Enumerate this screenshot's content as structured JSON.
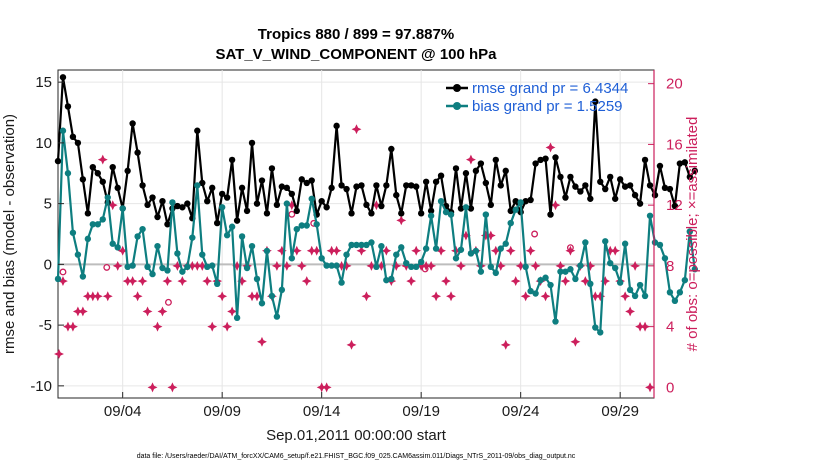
{
  "chart_data": {
    "type": "line",
    "title_line1": "Tropics 880 / 899 = 97.887%",
    "title_line2": "SAT_V_WIND_COMPONENT @ 100 hPa",
    "xlabel": "Sep.01,2011 00:00:00 start",
    "ylabel_left": "rmse and bias (model - observation)",
    "ylabel_right": "# of obs: o=possible; ×=assimilated",
    "footnote": "data file: /Users/raeder/DAI/ATM_forcXX/CAM6_setup/f.e21.FHIST_BGC.f09_025.CAM6assim.011/Diags_NTrS_2011-09/obs_diag_output.nc",
    "x_range": [
      0.75,
      30.7
    ],
    "ylim_left": [
      -11,
      16
    ],
    "ylim_right": [
      -0.7,
      20.9
    ],
    "x_ticks": [
      {
        "x": 4,
        "label": "09/04"
      },
      {
        "x": 9,
        "label": "09/09"
      },
      {
        "x": 14,
        "label": "09/14"
      },
      {
        "x": 19,
        "label": "09/19"
      },
      {
        "x": 24,
        "label": "09/24"
      },
      {
        "x": 29,
        "label": "09/29"
      }
    ],
    "y_ticks_left": [
      {
        "v": -10,
        "label": "-10"
      },
      {
        "v": -5,
        "label": "-5"
      },
      {
        "v": 0,
        "label": "0"
      },
      {
        "v": 5,
        "label": "5"
      },
      {
        "v": 10,
        "label": "10"
      },
      {
        "v": 15,
        "label": "15"
      }
    ],
    "y_ticks_right": [
      {
        "v": 0,
        "label": "0"
      },
      {
        "v": 4,
        "label": "4"
      },
      {
        "v": 8,
        "label": "8"
      },
      {
        "v": 12,
        "label": "12"
      },
      {
        "v": 16,
        "label": "16"
      },
      {
        "v": 20,
        "label": "20"
      }
    ],
    "grid": true,
    "legend_position": "top-right",
    "series": [
      {
        "name": "rmse grand pr = 6.4344",
        "color": "#000000",
        "x_start": 0.75,
        "x_step": 0.25,
        "values": [
          8.5,
          15.4,
          13,
          10.5,
          10,
          7,
          4.2,
          8,
          7.5,
          6.8,
          5.1,
          8,
          6.3,
          4.6,
          7.7,
          11.6,
          9.2,
          6.5,
          4.9,
          5.5,
          3.9,
          5.2,
          3.3,
          4.6,
          4.8,
          4.7,
          5,
          3.8,
          11,
          6.7,
          5.2,
          6.3,
          3.4,
          5.8,
          5.5,
          8.6,
          3.6,
          6.3,
          4.4,
          10,
          5,
          6.9,
          4.2,
          7.9,
          4.9,
          6.4,
          6.3,
          5.8,
          4.4,
          7,
          6.7,
          6.9,
          4.1,
          5.2,
          4.7,
          6.3,
          11.4,
          6.5,
          6.2,
          4.2,
          6.4,
          6.5,
          4.9,
          4.2,
          6.5,
          4.8,
          6.5,
          9.5,
          5.7,
          4.2,
          6.5,
          6.5,
          6.4,
          4.2,
          6.8,
          4.4,
          6.8,
          7.3,
          4.8,
          4.3,
          7.9,
          4.6,
          7.5,
          4.6,
          7.7,
          8.3,
          6.7,
          4.9,
          8.6,
          6.5,
          7.7,
          4.4,
          5.2,
          4.3,
          5.2,
          5.3,
          8.3,
          8.6,
          8.7,
          4.1,
          8.8,
          7.2,
          5.5,
          7.2,
          6.4,
          6,
          6.5,
          5.4,
          13.4,
          6.8,
          6.2,
          7.2,
          5.4,
          7,
          6.4,
          6.5,
          5.7,
          5,
          8.6,
          6.5,
          5.7,
          8.1,
          6.3,
          6.2,
          4.8,
          8.3,
          8.4,
          7.2,
          7.7
        ]
      },
      {
        "name": "bias grand pr = 1.5259",
        "color": "#0e7e80",
        "x_start": 0.75,
        "x_step": 0.25,
        "values": [
          -1.2,
          11,
          7.5,
          2.6,
          0.8,
          -1,
          2.1,
          3.3,
          3.3,
          3.7,
          5.5,
          1.7,
          1.4,
          4.6,
          -0.2,
          -0.1,
          2.3,
          2.9,
          -0.2,
          -0.8,
          1.5,
          -0.3,
          -0.5,
          5.1,
          0.9,
          -0.6,
          -0.2,
          2.2,
          6.5,
          0.8,
          -0.2,
          -0.1,
          -1.6,
          4.7,
          2.4,
          3.1,
          -4.4,
          2.3,
          -0.3,
          1.5,
          -1.2,
          -3.2,
          1.1,
          -2.6,
          -4.3,
          -2.1,
          5,
          0.5,
          2.9,
          3.2,
          3.2,
          5.4,
          3.3,
          0.5,
          -0.1,
          -0.1,
          -0.1,
          -1.5,
          0.8,
          1.6,
          1.6,
          1.6,
          1.6,
          1.8,
          -0.2,
          1.5,
          -1.3,
          -1.2,
          0.8,
          1.4,
          0.1,
          -0.2,
          -0.2,
          0.2,
          1.3,
          4,
          1.3,
          5.2,
          4.3,
          4.1,
          0.5,
          1.2,
          4.7,
          0.9,
          1.1,
          -0.6,
          4.1,
          -0.2,
          -0.7,
          1.3,
          1.7,
          3.4,
          4.5,
          5.1,
          -0.2,
          -2.2,
          -2.4,
          -1.3,
          -1.1,
          -1.7,
          -4.7,
          -0.6,
          -0.6,
          -0.4,
          -1.2,
          -0.1,
          1.8,
          -1.6,
          -5.2,
          -5.6,
          1.9,
          0.1,
          -0.3,
          -1.5,
          1.7,
          -2.1,
          -2.6,
          -1.7,
          -2.6,
          4,
          1.8,
          1.6,
          0.5,
          -2.3,
          -3,
          -2.3,
          -1.3,
          2.7,
          -0.4
        ]
      },
      {
        "name": "# obs possible",
        "color": "#cc1f5c",
        "points": [
          [
            1.0,
            7.6
          ],
          [
            3.2,
            7.9
          ],
          [
            6.3,
            5.6
          ],
          [
            12.5,
            11.4
          ],
          [
            13.6,
            10.8
          ],
          [
            19.2,
            7.8
          ],
          [
            24.7,
            10.1
          ],
          [
            26.5,
            9.2
          ]
        ]
      },
      {
        "name": "# obs assimilated",
        "color": "#cc1f5c",
        "points": [
          [
            0.8,
            2.2
          ],
          [
            1,
            7
          ],
          [
            1.25,
            4
          ],
          [
            1.5,
            4
          ],
          [
            1.75,
            5
          ],
          [
            2,
            5
          ],
          [
            2.25,
            6
          ],
          [
            2.5,
            6
          ],
          [
            2.75,
            6
          ],
          [
            3,
            15
          ],
          [
            3.25,
            6
          ],
          [
            3.5,
            12
          ],
          [
            3.75,
            8
          ],
          [
            4,
            9
          ],
          [
            4.25,
            7
          ],
          [
            4.5,
            7
          ],
          [
            4.75,
            6
          ],
          [
            5,
            7
          ],
          [
            5.25,
            5
          ],
          [
            5.5,
            0
          ],
          [
            5.75,
            4
          ],
          [
            6,
            5
          ],
          [
            6.25,
            7
          ],
          [
            6.5,
            0
          ],
          [
            6.75,
            8
          ],
          [
            7,
            7
          ],
          [
            7.25,
            8
          ],
          [
            7.5,
            8
          ],
          [
            7.75,
            8
          ],
          [
            8,
            8
          ],
          [
            8.25,
            7
          ],
          [
            8.5,
            4
          ],
          [
            8.75,
            7
          ],
          [
            9,
            6
          ],
          [
            9.25,
            4
          ],
          [
            9.5,
            5
          ],
          [
            9.75,
            8
          ],
          [
            10,
            7
          ],
          [
            10.25,
            8
          ],
          [
            10.5,
            6
          ],
          [
            10.75,
            6
          ],
          [
            11,
            3
          ],
          [
            11.25,
            9
          ],
          [
            11.5,
            6
          ],
          [
            11.75,
            8
          ],
          [
            12,
            9
          ],
          [
            12.25,
            8
          ],
          [
            12.5,
            12
          ],
          [
            12.75,
            9
          ],
          [
            13,
            8
          ],
          [
            13.25,
            7
          ],
          [
            13.5,
            9
          ],
          [
            13.75,
            9
          ],
          [
            14,
            0
          ],
          [
            14.25,
            0
          ],
          [
            14.5,
            9
          ],
          [
            14.75,
            9
          ],
          [
            15,
            8
          ],
          [
            15.25,
            8
          ],
          [
            15.5,
            2.8
          ],
          [
            15.75,
            17
          ],
          [
            16,
            9
          ],
          [
            16.25,
            6
          ],
          [
            16.5,
            8
          ],
          [
            16.75,
            12
          ],
          [
            17,
            8
          ],
          [
            17.25,
            9
          ],
          [
            17.5,
            7
          ],
          [
            17.75,
            8
          ],
          [
            18,
            11
          ],
          [
            18.25,
            8
          ],
          [
            18.5,
            7
          ],
          [
            18.75,
            9
          ],
          [
            19,
            8
          ],
          [
            19.25,
            8
          ],
          [
            19.5,
            8
          ],
          [
            19.75,
            6
          ],
          [
            20,
            9
          ],
          [
            20.25,
            7
          ],
          [
            20.5,
            6
          ],
          [
            20.75,
            9
          ],
          [
            21,
            8
          ],
          [
            21.25,
            10
          ],
          [
            21.5,
            15
          ],
          [
            21.75,
            9
          ],
          [
            22,
            8
          ],
          [
            22.25,
            10
          ],
          [
            22.5,
            10
          ],
          [
            22.75,
            9
          ],
          [
            23,
            8
          ],
          [
            23.25,
            2.8
          ],
          [
            23.5,
            9
          ],
          [
            23.75,
            7
          ],
          [
            24,
            8
          ],
          [
            24.25,
            6
          ],
          [
            24.5,
            9
          ],
          [
            24.75,
            8
          ],
          [
            25,
            7
          ],
          [
            25.25,
            6
          ],
          [
            25.5,
            15.8
          ],
          [
            25.75,
            12
          ],
          [
            26,
            8
          ],
          [
            26.25,
            7
          ],
          [
            26.5,
            9
          ],
          [
            26.75,
            3
          ],
          [
            27,
            8
          ],
          [
            27.25,
            7
          ],
          [
            27.5,
            8
          ],
          [
            27.75,
            6
          ],
          [
            28,
            6
          ],
          [
            28.25,
            7
          ],
          [
            28.5,
            9
          ],
          [
            28.75,
            9
          ],
          [
            29,
            7
          ],
          [
            29.25,
            6
          ],
          [
            29.5,
            5
          ],
          [
            29.75,
            8
          ],
          [
            30,
            4
          ],
          [
            30.25,
            4
          ],
          [
            30.5,
            0
          ]
        ]
      }
    ]
  }
}
